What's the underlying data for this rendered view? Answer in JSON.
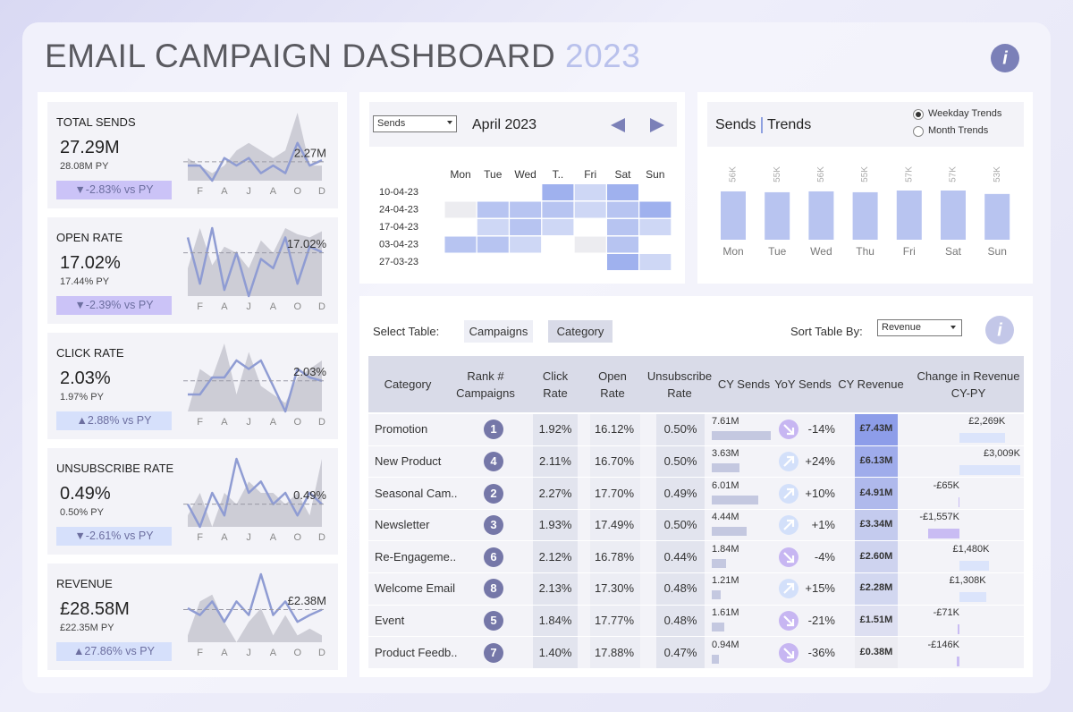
{
  "header": {
    "title": "EMAIL CAMPAIGN DASHBOARD",
    "year": "2023"
  },
  "kpis": [
    {
      "label": "TOTAL SENDS",
      "value": "27.29M",
      "py": "28.08M PY",
      "change": "▼-2.83% vs PY",
      "badge_color": "#cbc3f7",
      "chart_data": {
        "type": "line",
        "categories": [
          null,
          "F",
          null,
          "A",
          null,
          "J",
          null,
          "A",
          null,
          "O",
          null,
          "D"
        ],
        "series": [
          {
            "type": "area",
            "color": "#cdcdd6",
            "values": [
              2.3,
              2.2,
              2.1,
              2.2,
              2.4,
              2.5,
              2.4,
              2.3,
              2.4,
              2.9,
              2.2,
              2.2
            ]
          },
          {
            "type": "line",
            "color": "#8f9cd3",
            "values": [
              2.2,
              2.2,
              2.0,
              2.3,
              2.2,
              2.3,
              2.1,
              2.2,
              2.1,
              2.5,
              2.2,
              2.27
            ]
          }
        ],
        "reference": 2.25,
        "end_label": "2.27M"
      }
    },
    {
      "label": "OPEN RATE",
      "value": "17.02%",
      "py": "17.44% PY",
      "change": "▼-2.39% vs PY",
      "badge_color": "#cbc3f7",
      "chart_data": {
        "type": "line",
        "categories": [
          null,
          "F",
          null,
          "A",
          null,
          "J",
          null,
          "A",
          null,
          "O",
          null,
          "D"
        ],
        "series": [
          {
            "type": "area",
            "color": "#cdcdd6",
            "values": [
              16.5,
              17.8,
              16.6,
              17.2,
              17.0,
              16.5,
              17.4,
              17.0,
              17.8,
              17.6,
              17.5,
              17.7
            ]
          },
          {
            "type": "line",
            "color": "#8f9cd3",
            "values": [
              17.5,
              16.0,
              17.8,
              15.8,
              17.0,
              15.6,
              16.8,
              16.5,
              17.5,
              16.0,
              17.2,
              17.02
            ]
          }
        ],
        "reference": 17.0,
        "end_label": "17.02%"
      }
    },
    {
      "label": "CLICK RATE",
      "value": "2.03%",
      "py": "1.97% PY",
      "change": "▲2.88% vs PY",
      "badge_color": "#d6e0fb",
      "chart_data": {
        "type": "line",
        "categories": [
          null,
          "F",
          null,
          "A",
          null,
          "J",
          null,
          "A",
          null,
          "O",
          null,
          "D"
        ],
        "series": [
          {
            "type": "area",
            "color": "#cdcdd6",
            "values": [
              1.85,
              2.1,
              2.05,
              2.25,
              1.95,
              2.2,
              2.0,
              1.95,
              1.9,
              2.05,
              2.1,
              2.15
            ]
          },
          {
            "type": "line",
            "color": "#8f9cd3",
            "values": [
              1.95,
              1.95,
              2.05,
              2.05,
              2.15,
              2.1,
              2.15,
              2.0,
              1.85,
              2.1,
              2.05,
              2.03
            ]
          }
        ],
        "reference": 2.03,
        "end_label": "2.03%"
      }
    },
    {
      "label": "UNSUBSCRIBE RATE",
      "value": "0.49%",
      "py": "0.50% PY",
      "change": "▼-2.61% vs PY",
      "badge_color": "#d6e0fb",
      "chart_data": {
        "type": "line",
        "categories": [
          null,
          "F",
          null,
          "A",
          null,
          "J",
          null,
          "A",
          null,
          "O",
          null,
          "D"
        ],
        "series": [
          {
            "type": "area",
            "color": "#cdcdd6",
            "values": [
              0.48,
              0.5,
              0.47,
              0.5,
              0.49,
              0.51,
              0.5,
              0.5,
              0.49,
              0.5,
              0.48,
              0.53
            ]
          },
          {
            "type": "line",
            "color": "#8f9cd3",
            "values": [
              0.49,
              0.47,
              0.5,
              0.48,
              0.53,
              0.5,
              0.51,
              0.49,
              0.5,
              0.48,
              0.5,
              0.49
            ]
          }
        ],
        "reference": 0.49,
        "end_label": "0.49%"
      }
    },
    {
      "label": "REVENUE",
      "value": "£28.58M",
      "py": "£22.35M PY",
      "change": "▲27.86% vs PY",
      "badge_color": "#d6e0fb",
      "chart_data": {
        "type": "line",
        "categories": [
          null,
          "F",
          null,
          "A",
          null,
          "J",
          null,
          "A",
          null,
          "O",
          null,
          "D"
        ],
        "series": [
          {
            "type": "area",
            "color": "#cdcdd6",
            "values": [
              2.0,
              2.5,
              2.6,
              2.2,
              1.9,
              2.2,
              2.4,
              2.0,
              2.3,
              2.0,
              2.1,
              2.0
            ]
          },
          {
            "type": "line",
            "color": "#8f9cd3",
            "values": [
              2.4,
              2.3,
              2.5,
              2.2,
              2.5,
              2.3,
              2.9,
              2.3,
              2.5,
              2.2,
              2.3,
              2.38
            ]
          }
        ],
        "reference": 2.38,
        "end_label": "£2.38M"
      }
    }
  ],
  "calendar": {
    "dropdown": "Sends",
    "title": "April 2023",
    "days": [
      "Mon",
      "Tue",
      "Wed",
      "T..",
      "Fri",
      "Sat",
      "Sun"
    ],
    "weeks": [
      "10-04-23",
      "24-04-23",
      "17-04-23",
      "03-04-23",
      "27-03-23"
    ],
    "values": [
      [
        null,
        null,
        null,
        3,
        1,
        3,
        null
      ],
      [
        0,
        2,
        2,
        2,
        1,
        2,
        3
      ],
      [
        null,
        1,
        2,
        1,
        null,
        2,
        1
      ],
      [
        2,
        2,
        1,
        null,
        0,
        2,
        null
      ],
      [
        null,
        null,
        null,
        null,
        null,
        3,
        1
      ]
    ],
    "color": "#9fb1ee"
  },
  "trends": {
    "title": "Sends",
    "subtitle": "Trends",
    "options": [
      "Weekday Trends",
      "Month Trends"
    ],
    "selected": 0,
    "chart_data": {
      "type": "bar",
      "categories": [
        "Mon",
        "Tue",
        "Wed",
        "Thu",
        "Fri",
        "Sat",
        "Sun"
      ],
      "values": [
        56,
        55,
        56,
        55,
        57,
        57,
        53
      ],
      "value_labels": [
        "56K",
        "55K",
        "56K",
        "55K",
        "57K",
        "57K",
        "53K"
      ],
      "color": "#b8c4f0"
    }
  },
  "table": {
    "select_label": "Select Table:",
    "tabs": [
      "Campaigns",
      "Category"
    ],
    "active_tab": 1,
    "sort_label": "Sort Table By:",
    "sort": "Revenue",
    "columns": [
      "Category",
      "Rank # Campaigns",
      "Click Rate",
      "Open Rate",
      "Unsubscribe Rate",
      "CY Sends",
      "YoY Sends",
      "CY Revenue",
      "Change in Revenue CY-PY"
    ],
    "rows": [
      {
        "category": "Promotion",
        "rank": 1,
        "click_rate": "1.92%",
        "open_rate": "16.12%",
        "unsub_rate": "0.50%",
        "cy_sends": 7.61,
        "cy_sends_label": "7.61M",
        "yoy": -14,
        "yoy_label": "-14%",
        "cy_revenue": 7.43,
        "cy_revenue_label": "£7.43M",
        "change": 2269,
        "change_label": "£2,269K"
      },
      {
        "category": "New Product",
        "rank": 4,
        "click_rate": "2.11%",
        "open_rate": "16.70%",
        "unsub_rate": "0.50%",
        "cy_sends": 3.63,
        "cy_sends_label": "3.63M",
        "yoy": 24,
        "yoy_label": "+24%",
        "cy_revenue": 6.13,
        "cy_revenue_label": "£6.13M",
        "change": 3009,
        "change_label": "£3,009K"
      },
      {
        "category": "Seasonal Cam..",
        "rank": 2,
        "click_rate": "2.27%",
        "open_rate": "17.70%",
        "unsub_rate": "0.49%",
        "cy_sends": 6.01,
        "cy_sends_label": "6.01M",
        "yoy": 10,
        "yoy_label": "+10%",
        "cy_revenue": 4.91,
        "cy_revenue_label": "£4.91M",
        "change": -65,
        "change_label": "-£65K"
      },
      {
        "category": "Newsletter",
        "rank": 3,
        "click_rate": "1.93%",
        "open_rate": "17.49%",
        "unsub_rate": "0.50%",
        "cy_sends": 4.44,
        "cy_sends_label": "4.44M",
        "yoy": 1,
        "yoy_label": "+1%",
        "cy_revenue": 3.34,
        "cy_revenue_label": "£3.34M",
        "change": -1557,
        "change_label": "-£1,557K"
      },
      {
        "category": "Re-Engageme..",
        "rank": 6,
        "click_rate": "2.12%",
        "open_rate": "16.78%",
        "unsub_rate": "0.44%",
        "cy_sends": 1.84,
        "cy_sends_label": "1.84M",
        "yoy": -4,
        "yoy_label": "-4%",
        "cy_revenue": 2.6,
        "cy_revenue_label": "£2.60M",
        "change": 1480,
        "change_label": "£1,480K"
      },
      {
        "category": "Welcome Email",
        "rank": 8,
        "click_rate": "2.13%",
        "open_rate": "17.30%",
        "unsub_rate": "0.48%",
        "cy_sends": 1.21,
        "cy_sends_label": "1.21M",
        "yoy": 15,
        "yoy_label": "+15%",
        "cy_revenue": 2.28,
        "cy_revenue_label": "£2.28M",
        "change": 1308,
        "change_label": "£1,308K"
      },
      {
        "category": "Event",
        "rank": 5,
        "click_rate": "1.84%",
        "open_rate": "17.77%",
        "unsub_rate": "0.48%",
        "cy_sends": 1.61,
        "cy_sends_label": "1.61M",
        "yoy": -21,
        "yoy_label": "-21%",
        "cy_revenue": 1.51,
        "cy_revenue_label": "£1.51M",
        "change": -71,
        "change_label": "-£71K"
      },
      {
        "category": "Product Feedb..",
        "rank": 7,
        "click_rate": "1.40%",
        "open_rate": "17.88%",
        "unsub_rate": "0.47%",
        "cy_sends": 0.94,
        "cy_sends_label": "0.94M",
        "yoy": -36,
        "yoy_label": "-36%",
        "cy_revenue": 0.38,
        "cy_revenue_label": "£0.38M",
        "change": -146,
        "change_label": "-£146K"
      }
    ]
  }
}
